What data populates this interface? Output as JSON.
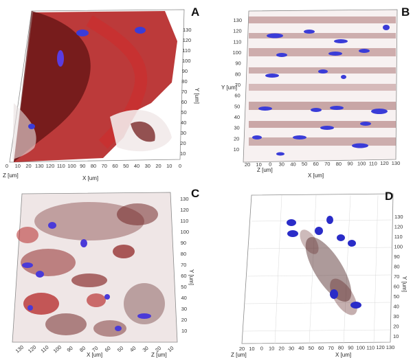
{
  "panels": {
    "A": {
      "label": "A",
      "y_axis_label": "Y [um]",
      "x_axis_label": "X [um]",
      "z_axis_label": "Z [um]",
      "y_ticks": [
        "130",
        "120",
        "110",
        "100",
        "90",
        "80",
        "70",
        "60",
        "50",
        "40",
        "30",
        "20",
        "10"
      ],
      "x_ticks": [
        "0",
        "10",
        "20",
        "130",
        "120",
        "110",
        "100",
        "90",
        "80",
        "70",
        "60",
        "50",
        "40",
        "30",
        "20",
        "10",
        "0"
      ]
    },
    "B": {
      "label": "B",
      "y_axis_label": "Y [um]",
      "x_axis_label": "X [um]",
      "z_axis_label": "Z [um]",
      "y_ticks": [
        "130",
        "120",
        "110",
        "100",
        "90",
        "80",
        "70",
        "60",
        "50",
        "40",
        "30",
        "20",
        "10"
      ],
      "x_ticks": [
        "20",
        "10",
        "0",
        "30",
        "40",
        "50",
        "60",
        "70",
        "80",
        "90",
        "100",
        "110",
        "120",
        "130"
      ]
    },
    "C": {
      "label": "C",
      "y_axis_label": "Y [um]",
      "x_axis_label": "X [um]",
      "z_axis_label": "Z [um]",
      "y_ticks": [
        "130",
        "120",
        "110",
        "100",
        "90",
        "80",
        "70",
        "60",
        "50",
        "40",
        "30",
        "20",
        "10"
      ],
      "x_ticks": [
        "130",
        "120",
        "110",
        "100",
        "90",
        "80",
        "70",
        "60",
        "50",
        "40",
        "30",
        "20",
        "10"
      ]
    },
    "D": {
      "label": "D",
      "y_axis_label": "Y [um]",
      "x_axis_label": "X [um]",
      "z_axis_label": "Z [um]",
      "y_ticks": [
        "130",
        "120",
        "110",
        "100",
        "90",
        "80",
        "70",
        "60",
        "50",
        "40",
        "30",
        "20",
        "10"
      ],
      "x_ticks": [
        "20",
        "10",
        "0",
        "10",
        "20",
        "30",
        "40",
        "50",
        "60",
        "70",
        "80",
        "90",
        "100",
        "110",
        "120",
        "130"
      ]
    }
  },
  "colors": {
    "tissue_red": "#b01818",
    "tissue_dark": "#5a0f0f",
    "nuclei_blue": "#3a3cd8",
    "frame": "#8a8a8a"
  }
}
